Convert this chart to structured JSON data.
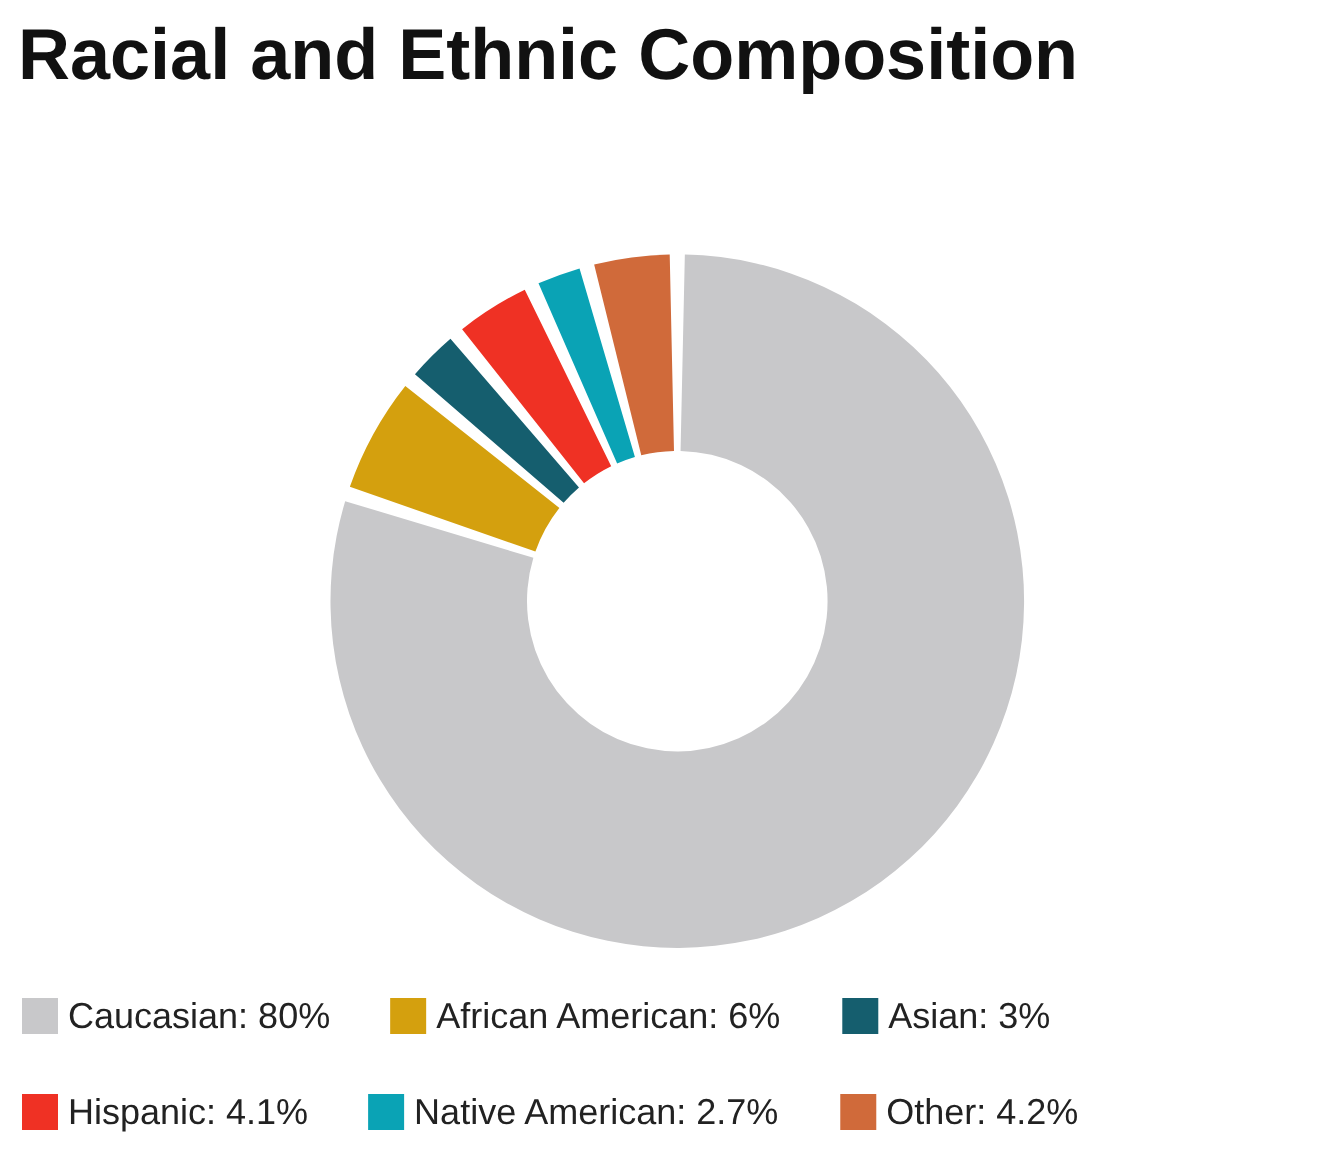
{
  "chart_data": {
    "type": "donut",
    "title": "Racial and Ethnic Composition",
    "categories": [
      "Caucasian",
      "African American",
      "Asian",
      "Hispanic",
      "Native American",
      "Other"
    ],
    "values": [
      80,
      6,
      3,
      4.1,
      2.7,
      4.2
    ],
    "value_labels": [
      "80%",
      "6%",
      "3%",
      "4.1%",
      "2.7%",
      "4.2%"
    ],
    "colors": [
      "#c8c8ca",
      "#d4a00e",
      "#155e6e",
      "#ef3124",
      "#0aa3b5",
      "#d06a3a"
    ],
    "legend": "bottom"
  }
}
